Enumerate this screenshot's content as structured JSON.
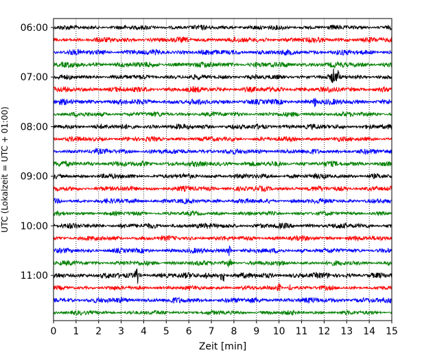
{
  "chart_data": {
    "type": "line",
    "title": "",
    "xlabel": "Zeit  [min]",
    "ylabel": "UTC (Lokalzeit = UTC + 01:00)",
    "xlim": [
      0,
      15
    ],
    "x_ticks": [
      "0",
      "1",
      "2",
      "3",
      "4",
      "5",
      "6",
      "7",
      "8",
      "9",
      "10",
      "11",
      "12",
      "13",
      "14",
      "15"
    ],
    "y_ticks": [
      "06:00",
      "07:00",
      "08:00",
      "09:00",
      "10:00",
      "11:00"
    ],
    "grid": "vertical dotted",
    "legend": "none",
    "trace_interval_minutes": 15,
    "start": "06:00",
    "trace_count": 24,
    "colors": [
      "#000000",
      "#ff0000",
      "#0000ff",
      "#008000"
    ],
    "events": [
      {
        "trace": 4,
        "x": 12.4,
        "amp": 2.4
      },
      {
        "trace": 4,
        "x": 12.6,
        "amp": 1.8
      },
      {
        "trace": 6,
        "x": 11.6,
        "amp": 1.5
      },
      {
        "trace": 18,
        "x": 7.8,
        "amp": 1.6
      },
      {
        "trace": 19,
        "x": 7.8,
        "amp": 1.4
      },
      {
        "trace": 20,
        "x": 3.7,
        "amp": 3.0
      },
      {
        "trace": 20,
        "x": 7.5,
        "amp": 3.2
      },
      {
        "trace": 20,
        "x": 6.8,
        "amp": 1.4
      },
      {
        "trace": 21,
        "x": 10.0,
        "amp": 1.2
      },
      {
        "trace": 21,
        "x": 10.5,
        "amp": 1.0
      }
    ]
  }
}
